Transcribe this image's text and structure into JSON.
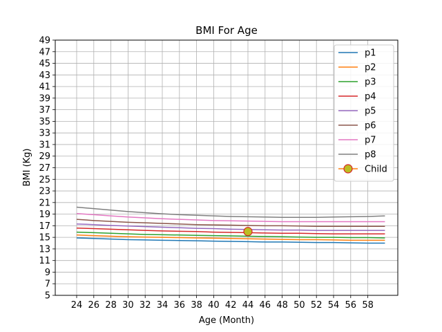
{
  "chart_data": {
    "type": "line",
    "title": "BMI For Age",
    "xlabel": "Age (Month)",
    "ylabel": "BMI (Kg)",
    "xlim": [
      21.5,
      61.5
    ],
    "ylim": [
      5,
      49
    ],
    "x_ticks": [
      24,
      26,
      28,
      30,
      32,
      34,
      36,
      38,
      40,
      42,
      44,
      46,
      48,
      50,
      52,
      54,
      56,
      58
    ],
    "y_ticks": [
      5,
      7,
      9,
      11,
      13,
      15,
      17,
      19,
      21,
      23,
      25,
      27,
      29,
      31,
      33,
      35,
      37,
      39,
      41,
      43,
      45,
      47,
      49
    ],
    "grid": true,
    "legend_position": "top-right",
    "x": [
      24,
      26,
      28,
      30,
      32,
      34,
      36,
      38,
      40,
      42,
      44,
      46,
      48,
      50,
      52,
      54,
      56,
      58,
      60
    ],
    "series": [
      {
        "name": "p1",
        "color": "#1f77b4",
        "values": [
          14.9,
          14.8,
          14.7,
          14.6,
          14.55,
          14.5,
          14.45,
          14.4,
          14.35,
          14.3,
          14.25,
          14.2,
          14.2,
          14.15,
          14.1,
          14.1,
          14.05,
          14.0,
          14.0
        ]
      },
      {
        "name": "p2",
        "color": "#ff7f0e",
        "values": [
          15.4,
          15.3,
          15.2,
          15.1,
          15.05,
          15.0,
          14.95,
          14.9,
          14.85,
          14.8,
          14.75,
          14.7,
          14.65,
          14.6,
          14.6,
          14.55,
          14.5,
          14.5,
          14.5
        ]
      },
      {
        "name": "p3",
        "color": "#2ca02c",
        "values": [
          15.9,
          15.8,
          15.7,
          15.6,
          15.5,
          15.45,
          15.4,
          15.35,
          15.3,
          15.25,
          15.2,
          15.15,
          15.1,
          15.05,
          15.0,
          15.0,
          14.95,
          14.95,
          14.9
        ]
      },
      {
        "name": "p4",
        "color": "#d62728",
        "values": [
          16.6,
          16.5,
          16.4,
          16.3,
          16.2,
          16.1,
          16.05,
          16.0,
          15.9,
          15.85,
          15.8,
          15.75,
          15.7,
          15.7,
          15.65,
          15.6,
          15.6,
          15.6,
          15.6
        ]
      },
      {
        "name": "p5",
        "color": "#9467bd",
        "values": [
          17.3,
          17.2,
          17.05,
          16.95,
          16.85,
          16.75,
          16.65,
          16.55,
          16.5,
          16.4,
          16.35,
          16.3,
          16.25,
          16.25,
          16.2,
          16.2,
          16.2,
          16.2,
          16.2
        ]
      },
      {
        "name": "p6",
        "color": "#8c564b",
        "values": [
          18.1,
          17.9,
          17.75,
          17.6,
          17.5,
          17.4,
          17.3,
          17.2,
          17.15,
          17.1,
          17.05,
          17.0,
          17.0,
          16.95,
          16.9,
          16.9,
          16.9,
          16.9,
          16.9
        ]
      },
      {
        "name": "p7",
        "color": "#e377c2",
        "values": [
          19.1,
          18.9,
          18.7,
          18.5,
          18.35,
          18.2,
          18.1,
          18.0,
          17.9,
          17.85,
          17.8,
          17.75,
          17.7,
          17.7,
          17.7,
          17.7,
          17.7,
          17.7,
          17.7
        ]
      },
      {
        "name": "p8",
        "color": "#7f7f7f",
        "values": [
          20.2,
          19.95,
          19.7,
          19.45,
          19.25,
          19.05,
          18.9,
          18.8,
          18.7,
          18.6,
          18.55,
          18.5,
          18.45,
          18.45,
          18.45,
          18.5,
          18.55,
          18.6,
          18.7
        ]
      }
    ],
    "child": {
      "name": "Child",
      "x": 44,
      "y": 16,
      "fill_color": "#bcbd22",
      "edge_color": "#d62728",
      "line_color": "#ff7f0e"
    }
  }
}
